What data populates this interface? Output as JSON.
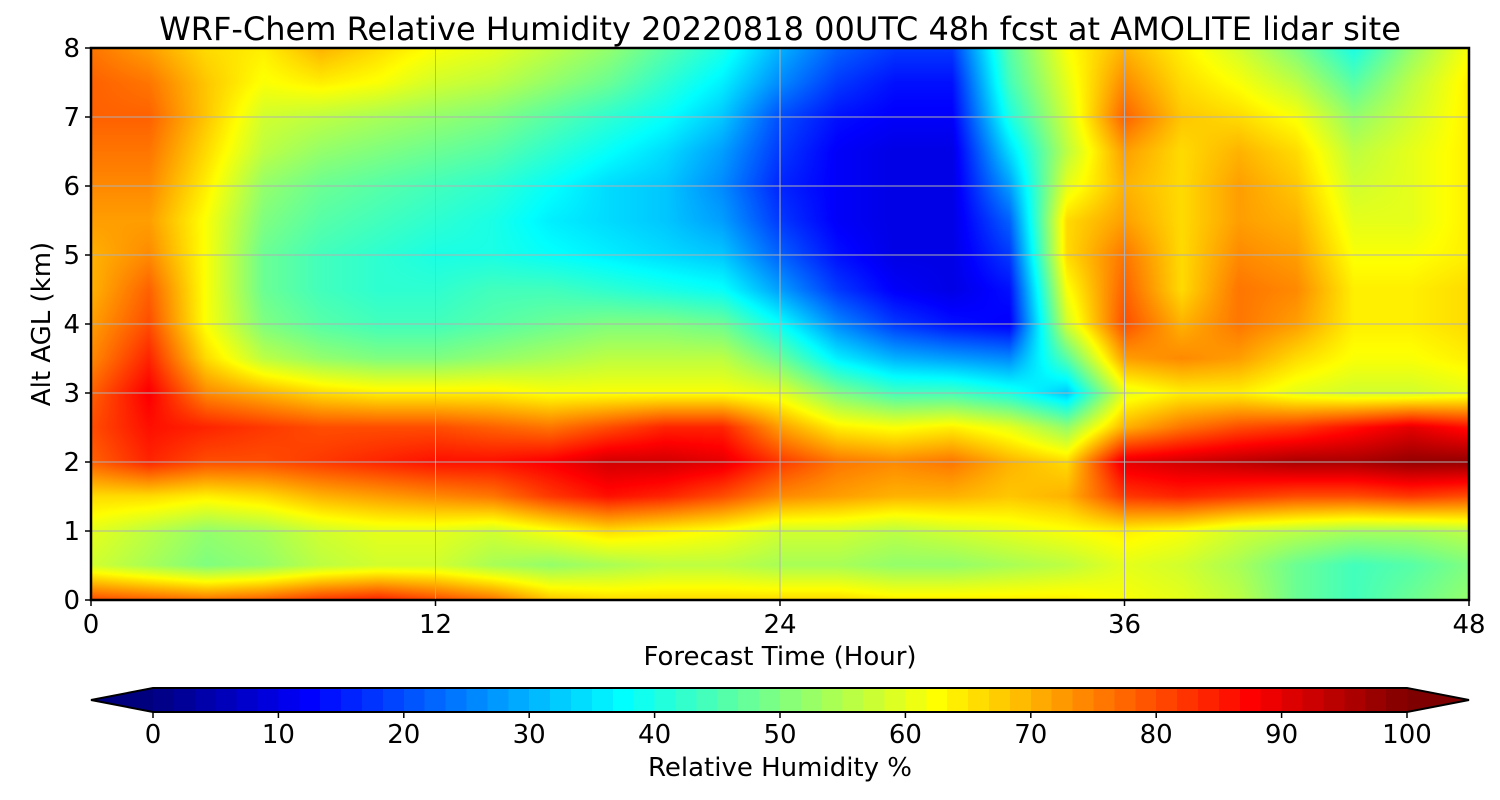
{
  "chart_data": {
    "type": "heatmap",
    "title": "WRF-Chem Relative Humidity 20220818 00UTC 48h fcst at AMOLITE lidar site",
    "xlabel": "Forecast Time (Hour)",
    "ylabel": "Alt AGL (km)",
    "xlim": [
      0,
      48
    ],
    "ylim": [
      0,
      8
    ],
    "xticks": [
      "0",
      "12",
      "24",
      "36",
      "48"
    ],
    "yticks": [
      "0",
      "1",
      "2",
      "3",
      "4",
      "5",
      "6",
      "7",
      "8"
    ],
    "grid": true,
    "x": [
      0,
      2,
      4,
      6,
      8,
      10,
      12,
      14,
      16,
      18,
      20,
      22,
      24,
      26,
      28,
      30,
      32,
      34,
      36,
      38,
      40,
      42,
      44,
      46,
      48
    ],
    "y": [
      0,
      0.5,
      1,
      1.5,
      2,
      2.5,
      3,
      3.5,
      4,
      4.5,
      5,
      5.5,
      6,
      6.5,
      7,
      7.5,
      8
    ],
    "z": [
      [
        80,
        78,
        76,
        78,
        82,
        84,
        80,
        76,
        68,
        66,
        66,
        66,
        66,
        66,
        64,
        64,
        64,
        64,
        62,
        60,
        56,
        48,
        44,
        48,
        52
      ],
      [
        58,
        54,
        50,
        52,
        56,
        58,
        58,
        54,
        52,
        54,
        56,
        56,
        54,
        54,
        52,
        52,
        54,
        56,
        60,
        58,
        54,
        48,
        44,
        46,
        50
      ],
      [
        60,
        56,
        52,
        54,
        58,
        60,
        60,
        58,
        62,
        66,
        64,
        62,
        58,
        58,
        56,
        58,
        60,
        62,
        64,
        62,
        58,
        56,
        54,
        54,
        56
      ],
      [
        66,
        66,
        64,
        66,
        70,
        72,
        74,
        76,
        82,
        86,
        84,
        80,
        74,
        72,
        70,
        70,
        68,
        70,
        82,
        84,
        82,
        80,
        80,
        82,
        80
      ],
      [
        78,
        84,
        80,
        80,
        82,
        84,
        86,
        86,
        88,
        92,
        92,
        90,
        82,
        76,
        74,
        76,
        70,
        66,
        90,
        92,
        94,
        96,
        96,
        98,
        98
      ],
      [
        80,
        86,
        84,
        82,
        80,
        80,
        80,
        78,
        76,
        80,
        84,
        84,
        72,
        64,
        62,
        64,
        60,
        52,
        70,
        76,
        80,
        82,
        86,
        90,
        86
      ],
      [
        78,
        88,
        74,
        70,
        66,
        64,
        64,
        64,
        62,
        62,
        62,
        62,
        60,
        50,
        44,
        44,
        40,
        32,
        60,
        64,
        64,
        60,
        58,
        58,
        60
      ],
      [
        74,
        84,
        66,
        56,
        52,
        50,
        50,
        52,
        54,
        56,
        56,
        56,
        48,
        36,
        30,
        28,
        26,
        46,
        72,
        74,
        72,
        66,
        62,
        62,
        64
      ],
      [
        72,
        80,
        62,
        50,
        46,
        44,
        44,
        46,
        48,
        50,
        50,
        48,
        38,
        26,
        18,
        14,
        12,
        58,
        80,
        70,
        76,
        72,
        64,
        64,
        66
      ],
      [
        70,
        78,
        62,
        48,
        44,
        42,
        42,
        44,
        44,
        42,
        40,
        38,
        28,
        18,
        12,
        10,
        14,
        62,
        78,
        66,
        76,
        74,
        64,
        64,
        66
      ],
      [
        70,
        74,
        62,
        48,
        44,
        42,
        40,
        40,
        38,
        36,
        34,
        32,
        22,
        14,
        10,
        10,
        18,
        66,
        76,
        66,
        74,
        72,
        62,
        62,
        64
      ],
      [
        72,
        72,
        62,
        50,
        46,
        44,
        42,
        40,
        36,
        34,
        32,
        28,
        18,
        12,
        10,
        10,
        22,
        66,
        72,
        66,
        72,
        70,
        60,
        60,
        64
      ],
      [
        74,
        74,
        64,
        52,
        48,
        46,
        44,
        42,
        38,
        34,
        32,
        26,
        16,
        12,
        10,
        10,
        28,
        60,
        70,
        66,
        72,
        68,
        58,
        60,
        64
      ],
      [
        76,
        76,
        66,
        56,
        52,
        50,
        48,
        46,
        42,
        38,
        34,
        28,
        18,
        12,
        10,
        10,
        34,
        56,
        72,
        66,
        70,
        66,
        56,
        60,
        64
      ],
      [
        78,
        78,
        68,
        58,
        56,
        54,
        52,
        50,
        46,
        42,
        38,
        32,
        20,
        14,
        12,
        12,
        40,
        58,
        78,
        68,
        66,
        62,
        52,
        58,
        64
      ],
      [
        78,
        76,
        68,
        62,
        64,
        62,
        58,
        56,
        52,
        48,
        42,
        36,
        26,
        18,
        14,
        14,
        44,
        60,
        74,
        66,
        62,
        56,
        46,
        56,
        64
      ],
      [
        76,
        72,
        66,
        64,
        70,
        66,
        62,
        60,
        56,
        52,
        46,
        40,
        30,
        22,
        18,
        18,
        46,
        62,
        70,
        64,
        58,
        50,
        40,
        52,
        62
      ]
    ],
    "colorbar": {
      "label": "Relative Humidity %",
      "min": 0,
      "max": 100,
      "extend": "both",
      "colormap": "jet",
      "ticks": [
        "0",
        "10",
        "20",
        "30",
        "40",
        "50",
        "60",
        "70",
        "80",
        "90",
        "100"
      ]
    }
  }
}
